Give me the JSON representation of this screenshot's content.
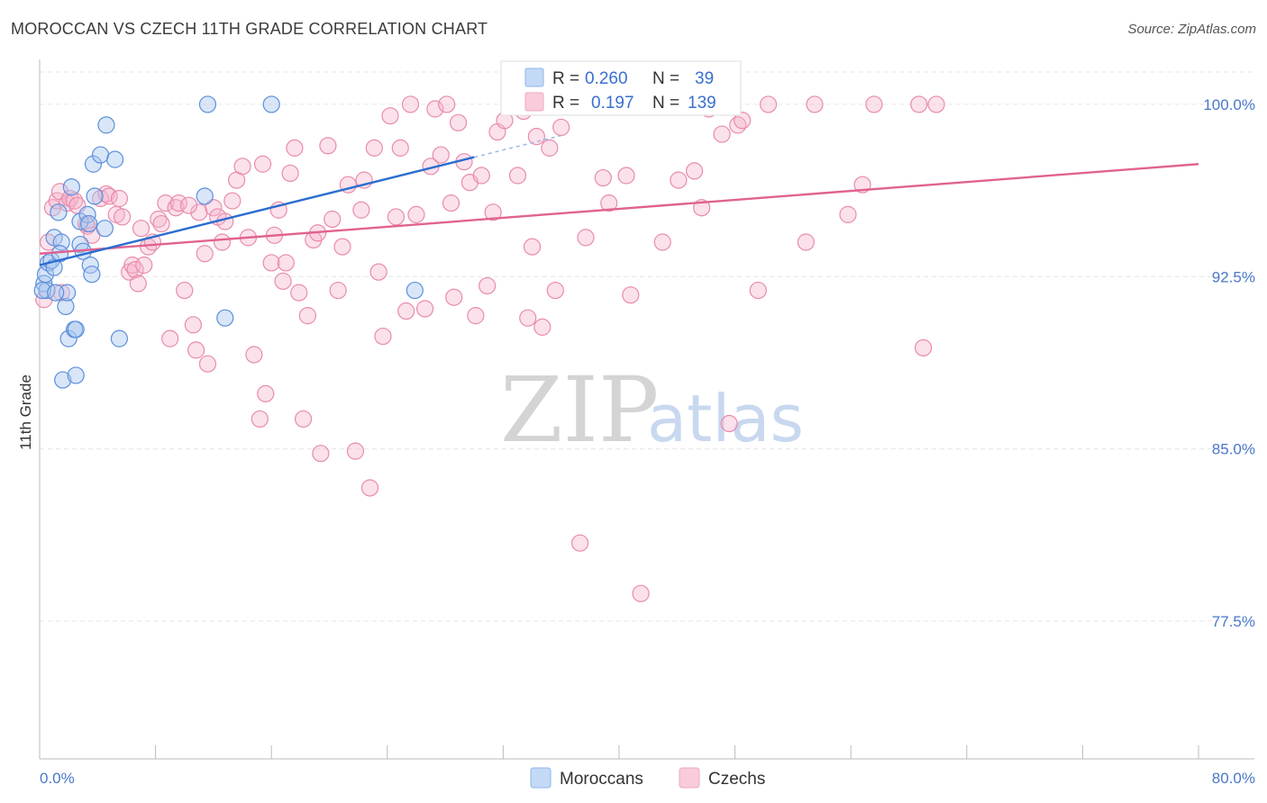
{
  "title": "MOROCCAN VS CZECH 11TH GRADE CORRELATION CHART",
  "source": "Source: ZipAtlas.com",
  "watermark": {
    "zip": "ZIP",
    "atlas": "atlas"
  },
  "legend": {
    "rows": [
      {
        "r_label": "R =",
        "r_value": "0.260",
        "n_label": "N =",
        "n_value": "39"
      },
      {
        "r_label": "R =",
        "r_value": "0.197",
        "n_label": "N =",
        "n_value": "139"
      }
    ]
  },
  "chart_data": {
    "type": "scatter",
    "title": "MOROCCAN VS CZECH 11TH GRADE CORRELATION CHART",
    "xlabel": "",
    "ylabel": "11th Grade",
    "xlim": [
      0,
      80
    ],
    "ylim": [
      71.5,
      101.8
    ],
    "x_tick_labels": [
      "0.0%",
      "80.0%"
    ],
    "y_ticks": [
      77.5,
      85.0,
      92.5,
      100.0
    ],
    "y_tick_labels": [
      "77.5%",
      "85.0%",
      "92.5%",
      "100.0%"
    ],
    "grid": true,
    "legend_position": "top-center",
    "colors": {
      "moroccans": "#8fb5ea",
      "czechs": "#f2a7c0",
      "moroccans_line": "#2a6dd0",
      "czechs_line": "#e0628f"
    },
    "series": [
      {
        "name": "Moroccans",
        "trendline": {
          "x": [
            0,
            30
          ],
          "y": [
            93.0,
            97.7
          ]
        },
        "points": [
          [
            0.3,
            92.2
          ],
          [
            0.4,
            92.6
          ],
          [
            0.5,
            91.9
          ],
          [
            0.6,
            93.1
          ],
          [
            0.8,
            93.2
          ],
          [
            1.0,
            92.9
          ],
          [
            1.0,
            94.2
          ],
          [
            1.3,
            95.3
          ],
          [
            1.5,
            94.0
          ],
          [
            1.6,
            88.0
          ],
          [
            1.8,
            91.2
          ],
          [
            1.9,
            91.8
          ],
          [
            2.0,
            89.8
          ],
          [
            2.2,
            96.4
          ],
          [
            2.4,
            90.2
          ],
          [
            2.5,
            90.2
          ],
          [
            2.5,
            88.2
          ],
          [
            2.8,
            93.9
          ],
          [
            2.8,
            94.9
          ],
          [
            3.0,
            93.6
          ],
          [
            3.3,
            95.2
          ],
          [
            3.4,
            94.8
          ],
          [
            3.5,
            93.0
          ],
          [
            3.6,
            92.6
          ],
          [
            3.7,
            97.4
          ],
          [
            3.8,
            96.0
          ],
          [
            4.2,
            97.8
          ],
          [
            4.5,
            94.6
          ],
          [
            4.6,
            99.1
          ],
          [
            5.2,
            97.6
          ],
          [
            5.5,
            89.8
          ],
          [
            11.4,
            96.0
          ],
          [
            11.6,
            100.0
          ],
          [
            12.8,
            90.7
          ],
          [
            16.0,
            100.0
          ],
          [
            25.9,
            91.9
          ],
          [
            0.2,
            91.9
          ],
          [
            1.1,
            91.8
          ],
          [
            1.4,
            93.5
          ]
        ]
      },
      {
        "name": "Czechs",
        "trendline": {
          "x": [
            0,
            80
          ],
          "y": [
            93.5,
            97.4
          ]
        },
        "points": [
          [
            0.3,
            91.5
          ],
          [
            0.6,
            94.0
          ],
          [
            0.9,
            95.5
          ],
          [
            1.2,
            95.8
          ],
          [
            1.4,
            96.2
          ],
          [
            1.5,
            91.8
          ],
          [
            1.9,
            95.7
          ],
          [
            2.1,
            95.9
          ],
          [
            2.4,
            95.8
          ],
          [
            2.6,
            95.6
          ],
          [
            3.2,
            94.8
          ],
          [
            3.3,
            94.7
          ],
          [
            3.6,
            94.3
          ],
          [
            4.2,
            95.9
          ],
          [
            4.6,
            96.1
          ],
          [
            4.8,
            96.0
          ],
          [
            5.3,
            95.2
          ],
          [
            5.5,
            95.9
          ],
          [
            5.7,
            95.1
          ],
          [
            6.2,
            92.7
          ],
          [
            6.4,
            93.0
          ],
          [
            6.6,
            92.8
          ],
          [
            6.8,
            92.2
          ],
          [
            7.2,
            93.0
          ],
          [
            7.5,
            93.8
          ],
          [
            7.8,
            94.0
          ],
          [
            8.2,
            95.0
          ],
          [
            8.4,
            94.8
          ],
          [
            8.7,
            95.7
          ],
          [
            9.0,
            89.8
          ],
          [
            9.4,
            95.5
          ],
          [
            9.6,
            95.7
          ],
          [
            10.0,
            91.9
          ],
          [
            10.6,
            90.4
          ],
          [
            10.8,
            89.3
          ],
          [
            11.0,
            95.3
          ],
          [
            11.4,
            93.5
          ],
          [
            11.6,
            88.7
          ],
          [
            12.0,
            95.5
          ],
          [
            12.3,
            95.1
          ],
          [
            12.6,
            94.0
          ],
          [
            12.8,
            94.9
          ],
          [
            13.3,
            95.8
          ],
          [
            13.6,
            96.7
          ],
          [
            14.0,
            97.3
          ],
          [
            14.4,
            94.2
          ],
          [
            14.8,
            89.1
          ],
          [
            15.2,
            86.3
          ],
          [
            15.4,
            97.4
          ],
          [
            15.6,
            87.4
          ],
          [
            16.0,
            93.1
          ],
          [
            16.2,
            94.3
          ],
          [
            16.5,
            95.4
          ],
          [
            17.0,
            93.1
          ],
          [
            17.3,
            97.0
          ],
          [
            17.6,
            98.1
          ],
          [
            17.9,
            91.8
          ],
          [
            18.2,
            86.3
          ],
          [
            18.5,
            90.8
          ],
          [
            18.9,
            94.1
          ],
          [
            19.2,
            94.4
          ],
          [
            19.4,
            84.8
          ],
          [
            19.9,
            98.2
          ],
          [
            20.2,
            95.0
          ],
          [
            20.6,
            91.9
          ],
          [
            20.9,
            93.8
          ],
          [
            21.3,
            96.5
          ],
          [
            21.8,
            84.9
          ],
          [
            22.2,
            95.4
          ],
          [
            22.4,
            96.7
          ],
          [
            22.8,
            83.3
          ],
          [
            23.1,
            98.1
          ],
          [
            23.4,
            92.7
          ],
          [
            23.7,
            89.9
          ],
          [
            24.2,
            99.5
          ],
          [
            24.6,
            95.1
          ],
          [
            24.9,
            98.1
          ],
          [
            25.3,
            91.0
          ],
          [
            25.6,
            100.0
          ],
          [
            26.0,
            95.2
          ],
          [
            26.6,
            91.1
          ],
          [
            27.0,
            97.3
          ],
          [
            27.3,
            99.8
          ],
          [
            27.7,
            97.8
          ],
          [
            28.1,
            100.0
          ],
          [
            28.4,
            95.7
          ],
          [
            28.6,
            91.6
          ],
          [
            28.9,
            99.2
          ],
          [
            29.3,
            97.5
          ],
          [
            29.7,
            96.6
          ],
          [
            30.1,
            90.8
          ],
          [
            30.5,
            96.9
          ],
          [
            30.9,
            92.1
          ],
          [
            31.3,
            95.3
          ],
          [
            31.6,
            98.8
          ],
          [
            32.1,
            99.3
          ],
          [
            33.0,
            96.9
          ],
          [
            33.4,
            99.7
          ],
          [
            33.7,
            90.7
          ],
          [
            34.0,
            93.8
          ],
          [
            34.3,
            98.6
          ],
          [
            34.7,
            90.3
          ],
          [
            35.2,
            98.1
          ],
          [
            35.6,
            91.9
          ],
          [
            36.0,
            99.0
          ],
          [
            37.3,
            80.9
          ],
          [
            37.7,
            94.2
          ],
          [
            38.9,
            96.8
          ],
          [
            39.3,
            95.7
          ],
          [
            40.5,
            96.9
          ],
          [
            40.8,
            91.7
          ],
          [
            41.5,
            78.7
          ],
          [
            43.0,
            94.0
          ],
          [
            44.1,
            96.7
          ],
          [
            45.2,
            97.1
          ],
          [
            45.7,
            95.5
          ],
          [
            46.2,
            99.8
          ],
          [
            46.5,
            100.0
          ],
          [
            47.1,
            98.7
          ],
          [
            47.6,
            86.1
          ],
          [
            48.2,
            99.1
          ],
          [
            48.5,
            99.3
          ],
          [
            49.6,
            91.9
          ],
          [
            50.3,
            100.0
          ],
          [
            52.9,
            94.0
          ],
          [
            53.5,
            100.0
          ],
          [
            55.8,
            95.2
          ],
          [
            56.8,
            96.5
          ],
          [
            57.6,
            100.0
          ],
          [
            60.7,
            100.0
          ],
          [
            61.0,
            89.4
          ],
          [
            61.9,
            100.0
          ],
          [
            7.0,
            94.6
          ],
          [
            10.3,
            95.6
          ],
          [
            16.8,
            92.3
          ]
        ]
      }
    ]
  },
  "bottom_legend": [
    "Moroccans",
    "Czechs"
  ]
}
